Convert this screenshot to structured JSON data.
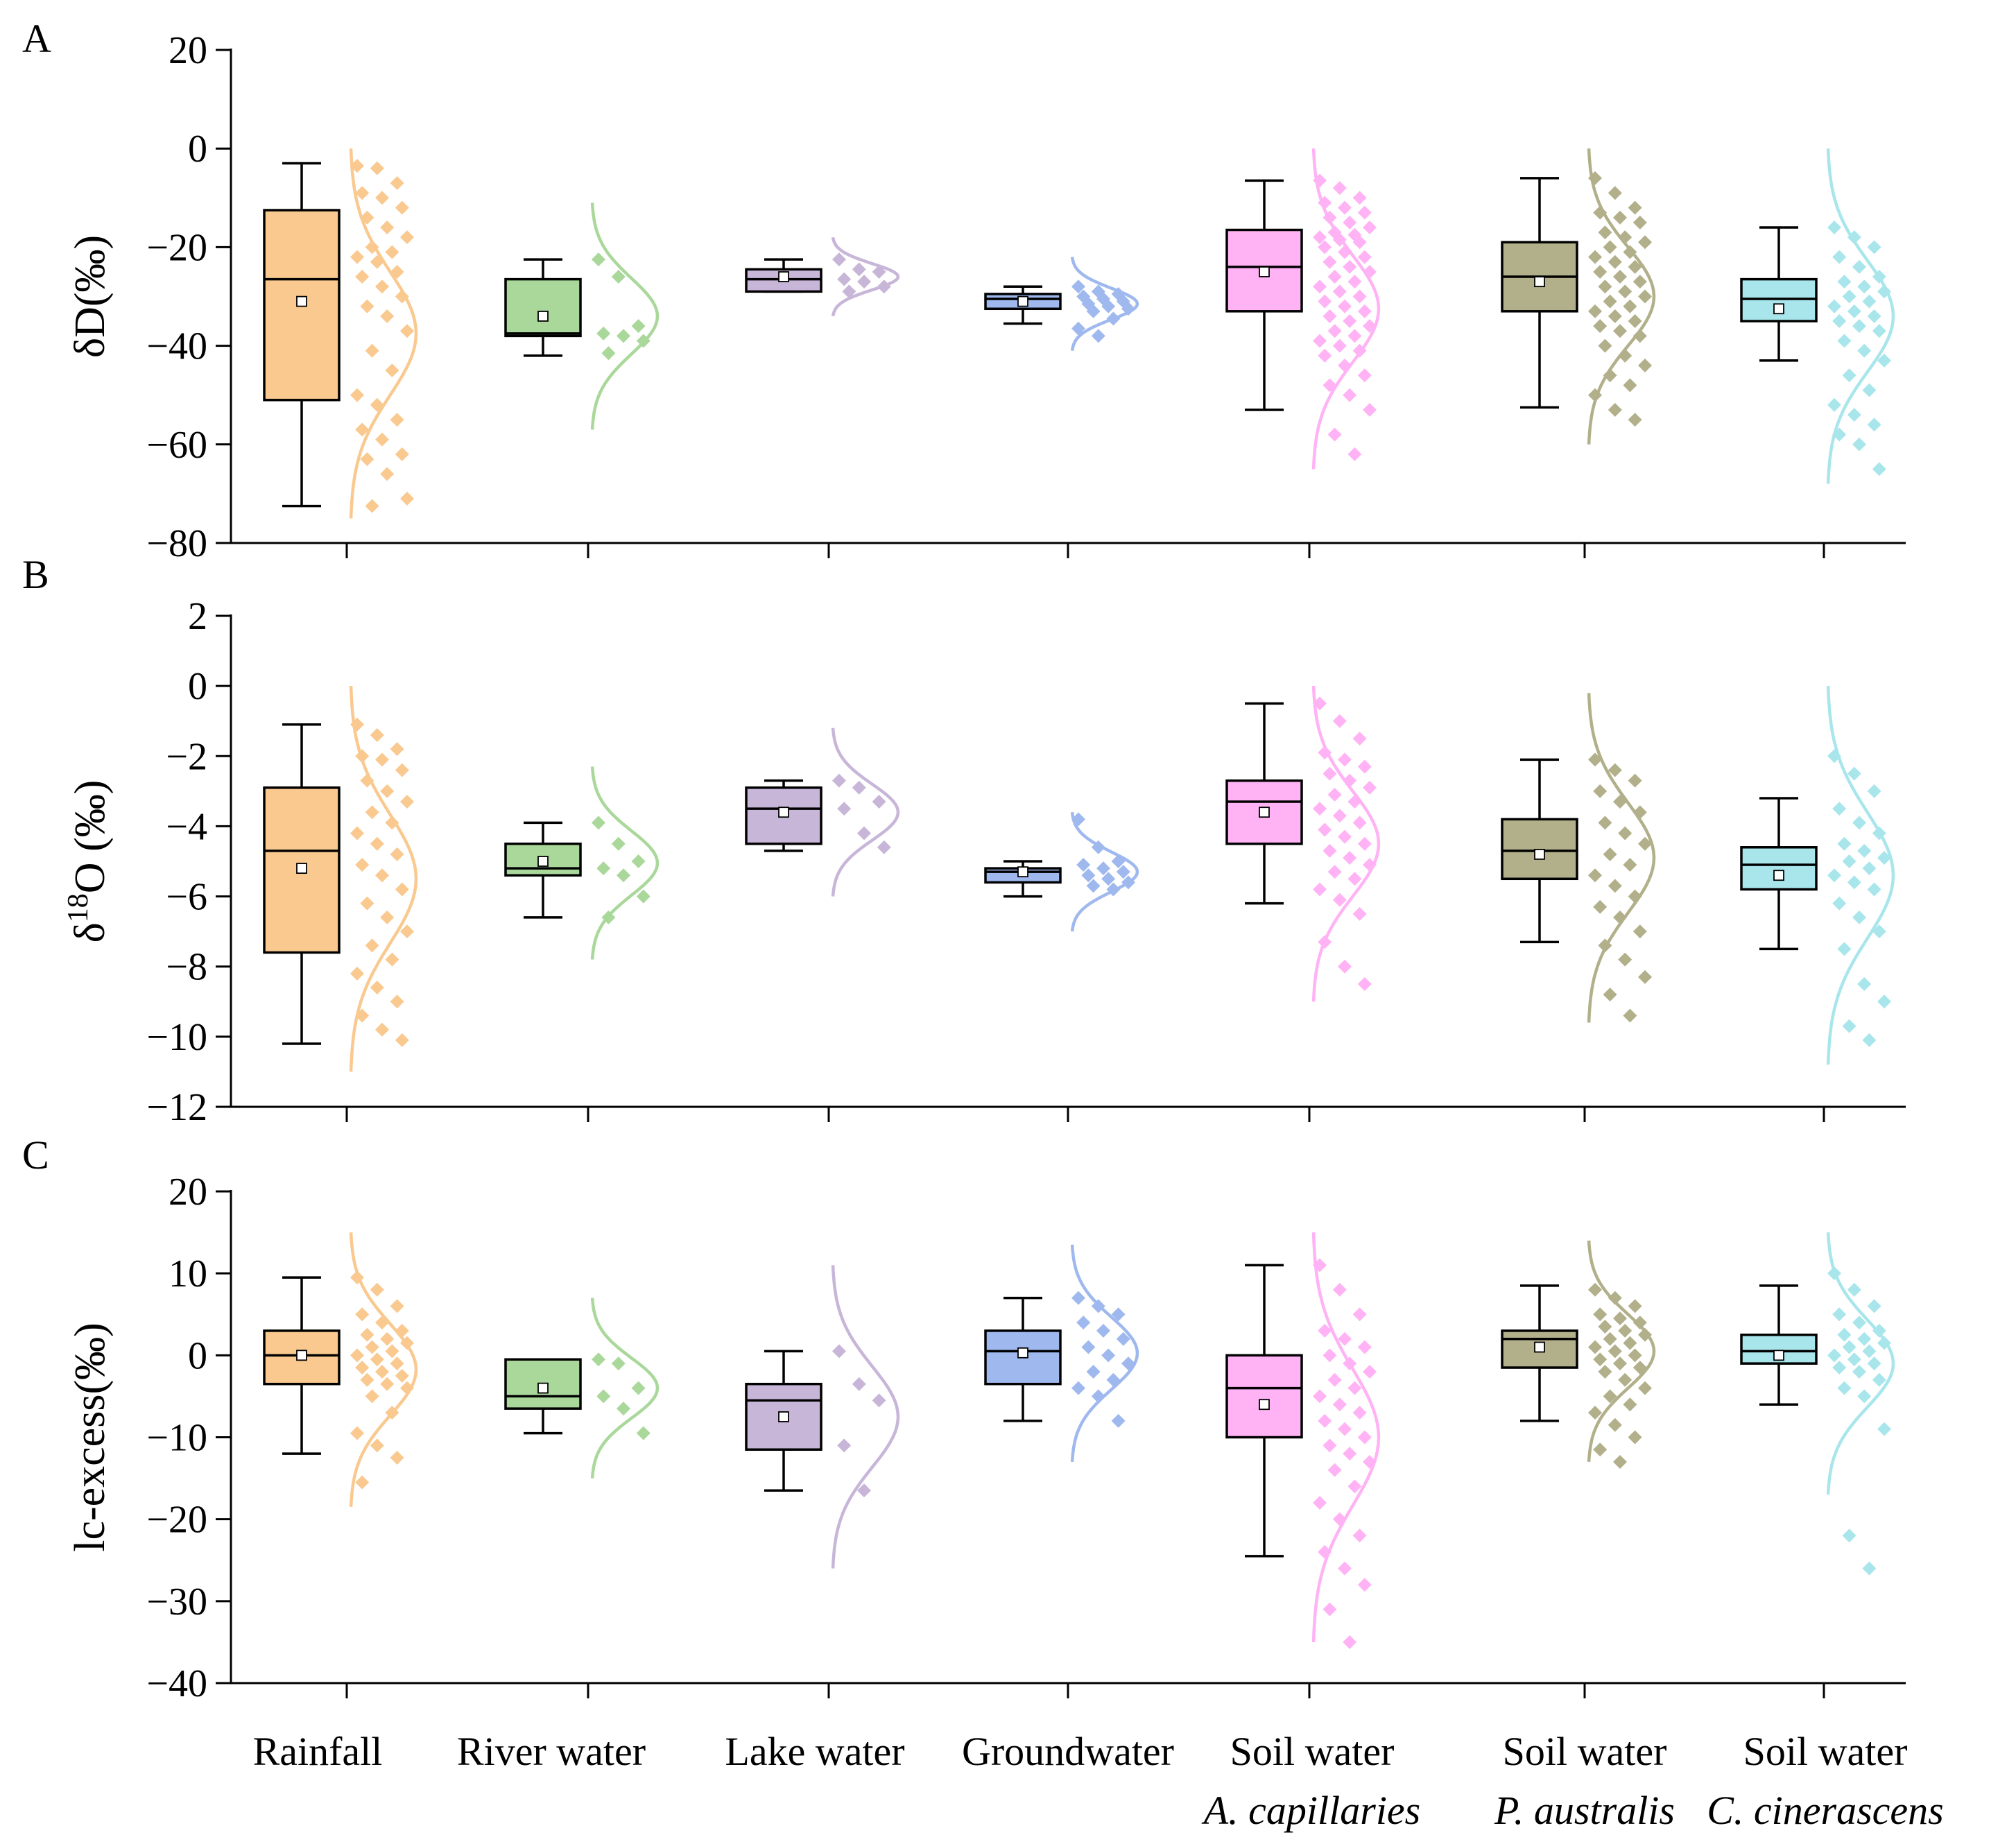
{
  "chart_data": [
    {
      "type": "box",
      "panel_label": "A",
      "ylabel": "δD(‰)",
      "ylim": [
        -80,
        20
      ],
      "yticks": [
        -80,
        -60,
        -40,
        -20,
        0,
        20
      ],
      "ytick_labels": [
        "−80",
        "−60",
        "−40",
        "−20",
        "0",
        "20"
      ],
      "groups": [
        {
          "name": "Rainfall",
          "color": "#f9c98f",
          "whisker_low": -72.5,
          "q1": -51,
          "median": -26.5,
          "q3": -12.5,
          "whisker_high": -3,
          "mean": -31,
          "points": [
            -3.5,
            -4,
            -7,
            -9,
            -10,
            -12,
            -14,
            -16,
            -18,
            -20,
            -21,
            -22,
            -23,
            -25,
            -26,
            -28,
            -30,
            -32,
            -34,
            -37,
            -41,
            -45,
            -50,
            -52,
            -55,
            -57,
            -59,
            -62,
            -63,
            -66,
            -71,
            -72.5
          ],
          "curve_range": [
            -75,
            0
          ]
        },
        {
          "name": "River water",
          "color": "#a9d89a",
          "whisker_low": -42,
          "q1": -38,
          "median": -37.5,
          "q3": -26.5,
          "whisker_high": -22.5,
          "mean": -34,
          "points": [
            -22.5,
            -26,
            -36,
            -37.5,
            -38,
            -39,
            -41.5
          ],
          "curve_range": [
            -57,
            -11
          ]
        },
        {
          "name": "Lake water",
          "color": "#c8b6d9",
          "whisker_low": -29,
          "q1": -29,
          "median": -26.5,
          "q3": -24.5,
          "whisker_high": -22.5,
          "mean": -26,
          "points": [
            -22.5,
            -24.5,
            -25,
            -26.5,
            -27,
            -28,
            -29
          ],
          "curve_range": [
            -34,
            -18
          ]
        },
        {
          "name": "Groundwater",
          "color": "#9fb9ef",
          "whisker_low": -35.5,
          "q1": -32.5,
          "median": -30.5,
          "q3": -29.5,
          "whisker_high": -28,
          "mean": -31,
          "points": [
            -28,
            -29,
            -29.5,
            -30,
            -30.5,
            -31,
            -31.5,
            -32,
            -32.5,
            -33,
            -34.5,
            -36.5,
            -38
          ],
          "curve_range": [
            -41,
            -22
          ]
        },
        {
          "name": "Soil water",
          "subname": "A. capillaries",
          "color": "#ffb3f5",
          "whisker_low": -53,
          "q1": -33,
          "median": -24,
          "q3": -16.5,
          "whisker_high": -6.5,
          "mean": -25,
          "points": [
            -6.5,
            -8,
            -10,
            -11,
            -12,
            -13,
            -14,
            -15,
            -16,
            -17,
            -17.5,
            -18,
            -18.5,
            -19,
            -20,
            -21,
            -22,
            -23,
            -24,
            -25,
            -26,
            -27,
            -28,
            -29,
            -30,
            -31,
            -32,
            -33,
            -34,
            -35,
            -36,
            -37,
            -38,
            -39,
            -40,
            -41,
            -42,
            -44,
            -46,
            -48,
            -50,
            -53,
            -58,
            -62
          ],
          "curve_range": [
            -65,
            0
          ]
        },
        {
          "name": "Soil water",
          "subname": "P. australis",
          "color": "#b2b08a",
          "whisker_low": -52.5,
          "q1": -33,
          "median": -26,
          "q3": -19,
          "whisker_high": -6,
          "mean": -27,
          "points": [
            -6,
            -9,
            -12,
            -13,
            -14,
            -15,
            -17,
            -18,
            -19,
            -20,
            -21,
            -22,
            -23,
            -24,
            -25,
            -26,
            -27,
            -28,
            -29,
            -30,
            -31,
            -32,
            -33,
            -34,
            -35,
            -36,
            -37,
            -38,
            -40,
            -42,
            -44,
            -46,
            -48,
            -50,
            -53,
            -55
          ],
          "curve_range": [
            -60,
            0
          ]
        },
        {
          "name": "Soil water",
          "subname": "C. cinerascens",
          "color": "#a8e6ec",
          "whisker_low": -43,
          "q1": -35,
          "median": -30.5,
          "q3": -26.5,
          "whisker_high": -16,
          "mean": -32.5,
          "points": [
            -16,
            -18,
            -20,
            -22,
            -24,
            -26,
            -27,
            -28,
            -29,
            -30,
            -31,
            -32,
            -33,
            -34,
            -35,
            -36,
            -37,
            -39,
            -41,
            -43,
            -46,
            -49,
            -52,
            -54,
            -56,
            -58,
            -60,
            -65
          ],
          "curve_range": [
            -68,
            0
          ]
        }
      ]
    },
    {
      "type": "box",
      "panel_label": "B",
      "ylabel": "δ18O (‰)",
      "ylim": [
        -12,
        2
      ],
      "yticks": [
        -12,
        -10,
        -8,
        -6,
        -4,
        -2,
        0,
        2
      ],
      "ytick_labels": [
        "−12",
        "−10",
        "−8",
        "−6",
        "−4",
        "−2",
        "0",
        "2"
      ],
      "groups": [
        {
          "name": "Rainfall",
          "color": "#f9c98f",
          "whisker_low": -10.2,
          "q1": -7.6,
          "median": -4.7,
          "q3": -2.9,
          "whisker_high": -1.1,
          "mean": -5.2,
          "points": [
            -1.1,
            -1.4,
            -1.8,
            -2.0,
            -2.1,
            -2.4,
            -2.7,
            -3.0,
            -3.3,
            -3.6,
            -3.9,
            -4.2,
            -4.5,
            -4.8,
            -5.1,
            -5.4,
            -5.8,
            -6.2,
            -6.6,
            -7.0,
            -7.4,
            -7.8,
            -8.2,
            -8.6,
            -9.0,
            -9.4,
            -9.8,
            -10.1
          ],
          "curve_range": [
            -11,
            0
          ]
        },
        {
          "name": "River water",
          "color": "#a9d89a",
          "whisker_low": -6.6,
          "q1": -5.4,
          "median": -5.2,
          "q3": -4.5,
          "whisker_high": -3.9,
          "mean": -5.0,
          "points": [
            -3.9,
            -4.5,
            -5.0,
            -5.2,
            -5.4,
            -6.0,
            -6.6
          ],
          "curve_range": [
            -7.8,
            -2.3
          ]
        },
        {
          "name": "Lake water",
          "color": "#c8b6d9",
          "whisker_low": -4.7,
          "q1": -4.5,
          "median": -3.5,
          "q3": -2.9,
          "whisker_high": -2.7,
          "mean": -3.6,
          "points": [
            -2.7,
            -2.9,
            -3.3,
            -3.5,
            -4.2,
            -4.6
          ],
          "curve_range": [
            -6.0,
            -1.2
          ]
        },
        {
          "name": "Groundwater",
          "color": "#9fb9ef",
          "whisker_low": -6.0,
          "q1": -5.6,
          "median": -5.3,
          "q3": -5.2,
          "whisker_high": -5.0,
          "mean": -5.3,
          "points": [
            -3.8,
            -4.6,
            -5.0,
            -5.1,
            -5.2,
            -5.3,
            -5.4,
            -5.5,
            -5.6,
            -5.7,
            -5.8
          ],
          "curve_range": [
            -7.0,
            -3.6
          ]
        },
        {
          "name": "Soil water",
          "subname": "A. capillaries",
          "color": "#ffb3f5",
          "whisker_low": -6.2,
          "q1": -4.5,
          "median": -3.3,
          "q3": -2.7,
          "whisker_high": -0.5,
          "mean": -3.6,
          "points": [
            -0.5,
            -1.0,
            -1.5,
            -1.9,
            -2.1,
            -2.3,
            -2.5,
            -2.7,
            -2.9,
            -3.1,
            -3.3,
            -3.5,
            -3.7,
            -3.9,
            -4.1,
            -4.3,
            -4.5,
            -4.7,
            -4.9,
            -5.1,
            -5.3,
            -5.5,
            -5.8,
            -6.1,
            -6.5,
            -7.3,
            -8.0,
            -8.5
          ],
          "curve_range": [
            -9.0,
            0
          ]
        },
        {
          "name": "Soil water",
          "subname": "P. australis",
          "color": "#b2b08a",
          "whisker_low": -7.3,
          "q1": -5.5,
          "median": -4.7,
          "q3": -3.8,
          "whisker_high": -2.1,
          "mean": -4.8,
          "points": [
            -2.1,
            -2.4,
            -2.7,
            -3.0,
            -3.3,
            -3.6,
            -3.9,
            -4.2,
            -4.5,
            -4.8,
            -5.1,
            -5.4,
            -5.7,
            -6.0,
            -6.3,
            -6.6,
            -7.0,
            -7.4,
            -7.8,
            -8.3,
            -8.8,
            -9.4
          ],
          "curve_range": [
            -9.6,
            -0.2
          ]
        },
        {
          "name": "Soil water",
          "subname": "C. cinerascens",
          "color": "#a8e6ec",
          "whisker_low": -7.5,
          "q1": -5.8,
          "median": -5.1,
          "q3": -4.6,
          "whisker_high": -3.2,
          "mean": -5.4,
          "points": [
            -2.0,
            -2.5,
            -3.0,
            -3.5,
            -3.9,
            -4.2,
            -4.5,
            -4.7,
            -4.9,
            -5.0,
            -5.2,
            -5.4,
            -5.6,
            -5.8,
            -6.2,
            -6.6,
            -7.0,
            -7.5,
            -8.5,
            -9.0,
            -9.7,
            -10.1
          ],
          "curve_range": [
            -10.8,
            0
          ]
        }
      ]
    },
    {
      "type": "box",
      "panel_label": "C",
      "ylabel": "lc-excess(‰)",
      "ylim": [
        -40,
        20
      ],
      "yticks": [
        -40,
        -30,
        -20,
        -10,
        0,
        10,
        20
      ],
      "ytick_labels": [
        "−40",
        "−30",
        "−20",
        "−10",
        "0",
        "10",
        "20"
      ],
      "groups": [
        {
          "name": "Rainfall",
          "color": "#f9c98f",
          "whisker_low": -12,
          "q1": -3.5,
          "median": 0,
          "q3": 3,
          "whisker_high": 9.5,
          "mean": 0,
          "points": [
            9.5,
            8,
            6,
            5,
            4,
            3,
            2.5,
            2,
            1.5,
            1,
            0.5,
            0,
            -0.5,
            -1,
            -1.5,
            -2,
            -2.5,
            -3,
            -3.5,
            -4,
            -5,
            -7,
            -9.5,
            -11,
            -12.5,
            -15.5
          ],
          "curve_range": [
            -18.5,
            15
          ]
        },
        {
          "name": "River water",
          "color": "#a9d89a",
          "whisker_low": -9.5,
          "q1": -6.5,
          "median": -5,
          "q3": -0.5,
          "whisker_high": -0.5,
          "mean": -4,
          "points": [
            -0.5,
            -1,
            -4,
            -5,
            -6.5,
            -9.5
          ],
          "curve_range": [
            -15,
            7
          ]
        },
        {
          "name": "Lake water",
          "color": "#c8b6d9",
          "whisker_low": -16.5,
          "q1": -11.5,
          "median": -5.5,
          "q3": -3.5,
          "whisker_high": 0.5,
          "mean": -7.5,
          "points": [
            0.5,
            -3.5,
            -5.5,
            -11,
            -16.5
          ],
          "curve_range": [
            -26,
            11
          ]
        },
        {
          "name": "Groundwater",
          "color": "#9fb9ef",
          "whisker_low": -8,
          "q1": -3.5,
          "median": 0.5,
          "q3": 3,
          "whisker_high": 7,
          "mean": 0.3,
          "points": [
            7,
            6,
            5,
            4,
            3,
            2,
            1,
            0,
            -1,
            -2,
            -3,
            -4,
            -5,
            -8
          ],
          "curve_range": [
            -13,
            13.5
          ]
        },
        {
          "name": "Soil water",
          "subname": "A. capillaries",
          "color": "#ffb3f5",
          "whisker_low": -24.5,
          "q1": -10,
          "median": -4,
          "q3": 0,
          "whisker_high": 11,
          "mean": -6,
          "points": [
            11,
            8,
            5,
            3,
            2,
            1,
            0,
            -1,
            -2,
            -3,
            -4,
            -5,
            -6,
            -7,
            -8,
            -9,
            -10,
            -11,
            -12,
            -13,
            -14,
            -16,
            -18,
            -20,
            -22,
            -24,
            -26,
            -28,
            -31,
            -35
          ],
          "curve_range": [
            -35,
            15
          ]
        },
        {
          "name": "Soil water",
          "subname": "P. australis",
          "color": "#b2b08a",
          "whisker_low": -8,
          "q1": -1.5,
          "median": 2,
          "q3": 3,
          "whisker_high": 8.5,
          "mean": 1,
          "points": [
            8,
            7,
            6,
            5,
            4.5,
            4,
            3.5,
            3,
            2.5,
            2,
            1.5,
            1,
            0.5,
            0,
            -0.5,
            -1,
            -1.5,
            -2,
            -3,
            -4,
            -5,
            -6,
            -7,
            -8.5,
            -10,
            -11.5,
            -13
          ],
          "curve_range": [
            -13,
            14
          ]
        },
        {
          "name": "Soil water",
          "subname": "C. cinerascens",
          "color": "#a8e6ec",
          "whisker_low": -6,
          "q1": -1,
          "median": 0.5,
          "q3": 2.5,
          "whisker_high": 8.5,
          "mean": 0,
          "points": [
            10,
            8,
            6,
            5,
            4,
            3,
            2.5,
            2,
            1.5,
            1,
            0.5,
            0,
            -0.5,
            -1,
            -1.5,
            -2,
            -3,
            -4,
            -5,
            -9,
            -22,
            -26
          ],
          "curve_range": [
            -17,
            15
          ]
        }
      ]
    }
  ],
  "x_categories": [
    {
      "label": "Rainfall",
      "sublabel": ""
    },
    {
      "label": "River water",
      "sublabel": ""
    },
    {
      "label": "Lake water",
      "sublabel": ""
    },
    {
      "label": "Groundwater",
      "sublabel": ""
    },
    {
      "label": "Soil water",
      "sublabel": "A. capillaries"
    },
    {
      "label": "Soil water",
      "sublabel": "P. australis"
    },
    {
      "label": "Soil water",
      "sublabel": "C. cinerascens"
    }
  ]
}
